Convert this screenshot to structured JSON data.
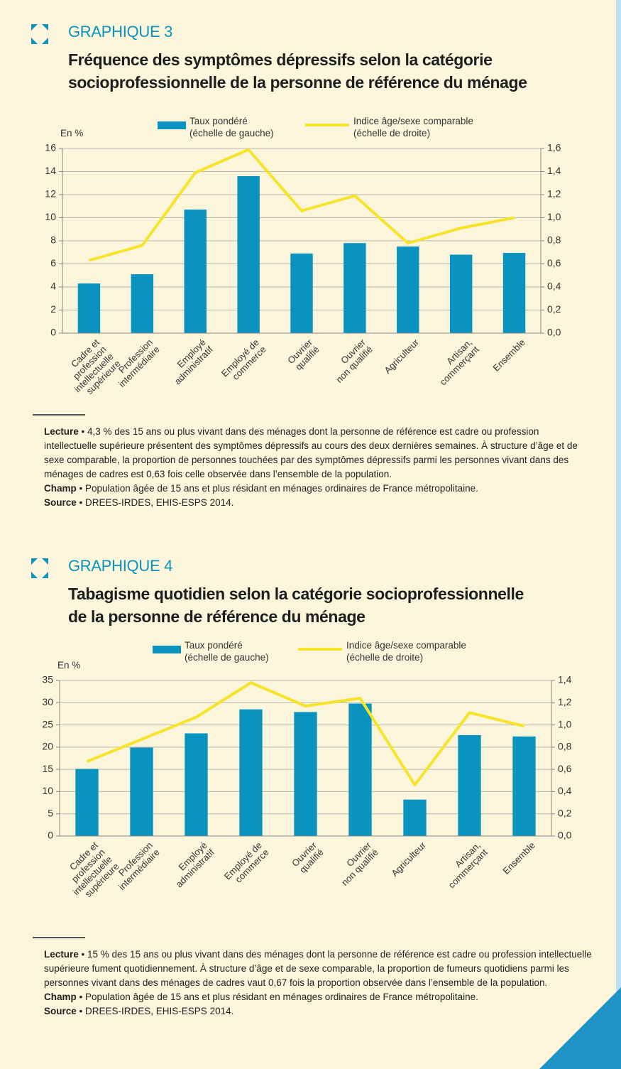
{
  "chart_data": [
    {
      "type": "bar",
      "label": "GRAPHIQUE 3",
      "title": "Fréquence des symptômes dépressifs selon la catégorie\nsocioprofessionnelle de la personne de référence du ménage",
      "y_label": "En %",
      "categories": [
        "Cadre et\nprofession\nintellectuelle\nsupérieure",
        "Profession\nintermédiaire",
        "Employé\nadministratif",
        "Employé de\ncommerce",
        "Ouvrier\nqualifié",
        "Ouvrier\nnon qualifié",
        "Agriculteur",
        "Artisan,\ncommerçant",
        "Ensemble"
      ],
      "series": [
        {
          "name": "Taux pondéré\n(échelle de gauche)",
          "type": "bar",
          "color": "#0a93bf",
          "values": [
            4.3,
            5.1,
            10.7,
            13.6,
            6.9,
            7.8,
            7.5,
            6.8,
            6.95
          ]
        },
        {
          "name": "Indice âge/sexe comparable\n(échelle de droite)",
          "type": "line",
          "axis": "y2",
          "color": "#f7e42a",
          "values": [
            0.63,
            0.76,
            1.39,
            1.59,
            1.06,
            1.19,
            0.78,
            0.91,
            1.0
          ]
        }
      ],
      "ylim": [
        0,
        16
      ],
      "yticks": [
        0,
        2,
        4,
        6,
        8,
        10,
        12,
        14,
        16
      ],
      "y2lim": [
        0,
        1.6
      ],
      "y2ticks": [
        {
          "value": 0,
          "label": "0,0"
        },
        {
          "value": 0.2,
          "label": "0,2"
        },
        {
          "value": 0.4,
          "label": "0,4"
        },
        {
          "value": 0.6,
          "label": "0,6"
        },
        {
          "value": 0.8,
          "label": "0,8"
        },
        {
          "value": 1.0,
          "label": "1,0"
        },
        {
          "value": 1.2,
          "label": "1,2"
        },
        {
          "value": 1.4,
          "label": "1,4"
        },
        {
          "value": 1.6,
          "label": "1,6"
        }
      ],
      "grid": true,
      "notes": [
        {
          "label": "Lecture",
          "text": "• 4,3 % des 15 ans ou plus vivant dans des ménages dont la personne de référence est cadre ou profession intellectuelle supérieure présentent des symptômes dépressifs au cours des deux dernières semaines. À structure d’âge et de sexe comparable, la proportion de personnes touchées par des symptômes dépressifs parmi les personnes vivant dans des ménages de cadres est 0,63 fois celle observée dans l’ensemble de la population."
        },
        {
          "label": "Champ",
          "text": "• Population âgée de 15 ans et plus résidant en ménages ordinaires de France métropolitaine."
        },
        {
          "label": "Source",
          "text": "• DREES-IRDES, EHIS-ESPS 2014."
        }
      ]
    },
    {
      "type": "bar",
      "label": "GRAPHIQUE 4",
      "title": "Tabagisme quotidien selon la catégorie socioprofessionnelle\nde la personne de référence du ménage",
      "y_label": "En %",
      "categories": [
        "Cadre et\nprofession\nintellectuelle\nsupérieure",
        "Profession\nintermédiaire",
        "Employé\nadministratif",
        "Employé de\ncommerce",
        "Ouvrier\nqualifié",
        "Ouvrier\nnon qualifié",
        "Agriculteur",
        "Artisan,\ncommerçant",
        "Ensemble"
      ],
      "series": [
        {
          "name": "Taux pondéré\n(échelle de gauche)",
          "type": "bar",
          "color": "#0a93bf",
          "values": [
            15.1,
            19.9,
            23.1,
            28.5,
            27.9,
            29.8,
            8.2,
            22.7,
            22.4
          ]
        },
        {
          "name": "Indice âge/sexe comparable\n(échelle de droite)",
          "type": "line",
          "axis": "y2",
          "color": "#f7e42a",
          "values": [
            0.67,
            0.87,
            1.07,
            1.38,
            1.17,
            1.24,
            0.46,
            1.11,
            0.99
          ]
        }
      ],
      "ylim": [
        0,
        35
      ],
      "yticks": [
        0,
        5,
        10,
        15,
        20,
        25,
        30,
        35
      ],
      "y2lim": [
        0,
        1.4
      ],
      "y2ticks": [
        {
          "value": 0,
          "label": "0,0"
        },
        {
          "value": 0.2,
          "label": "0,2"
        },
        {
          "value": 0.4,
          "label": "0,4"
        },
        {
          "value": 0.6,
          "label": "0,6"
        },
        {
          "value": 0.8,
          "label": "0,8"
        },
        {
          "value": 1.0,
          "label": "1,0"
        },
        {
          "value": 1.2,
          "label": "1,2"
        },
        {
          "value": 1.4,
          "label": "1,4"
        }
      ],
      "grid": true,
      "notes": [
        {
          "label": "Lecture",
          "text": "• 15 % des 15 ans ou plus vivant dans des ménages dont la personne de référence est cadre ou profession intellectuelle supérieure fument quotidiennement. À structure d’âge et de sexe comparable, la proportion de fumeurs quotidiens parmi les personnes vivant dans des ménages de cadres vaut 0,67 fois la proportion observée dans l’ensemble de la population."
        },
        {
          "label": "Champ",
          "text": "• Population âgée de 15 ans et plus résidant en ménages ordinaires de France métropolitaine."
        },
        {
          "label": "Source",
          "text": "• DREES-IRDES, EHIS-ESPS 2014."
        }
      ]
    }
  ]
}
